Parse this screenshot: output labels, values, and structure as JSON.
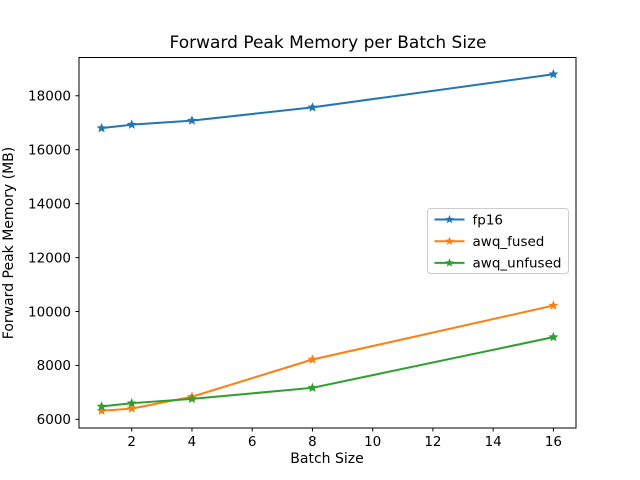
{
  "figure": {
    "background": "#ffffff",
    "frame_color": "#000000"
  },
  "chart_data": {
    "type": "line",
    "title": "Forward Peak Memory per Batch Size",
    "xlabel": "Batch Size",
    "ylabel": "Forward Peak Memory (MB)",
    "x": [
      1,
      2,
      4,
      8,
      16
    ],
    "series": [
      {
        "name": "fp16",
        "color": "#1f77b4",
        "values": [
          16800,
          16930,
          17080,
          17570,
          18800
        ]
      },
      {
        "name": "awq_fused",
        "color": "#ff7f0e",
        "values": [
          6320,
          6400,
          6840,
          8220,
          10220
        ]
      },
      {
        "name": "awq_unfused",
        "color": "#2ca02c",
        "values": [
          6480,
          6600,
          6760,
          7170,
          9050
        ]
      }
    ],
    "marker": "star",
    "xticks": [
      2,
      4,
      6,
      8,
      10,
      12,
      14,
      16
    ],
    "yticks": [
      6000,
      8000,
      10000,
      12000,
      14000,
      16000,
      18000
    ],
    "xlim": [
      0.25,
      16.75
    ],
    "ylim": [
      5680,
      19420
    ],
    "grid": false,
    "legend": {
      "position": "center right"
    }
  }
}
